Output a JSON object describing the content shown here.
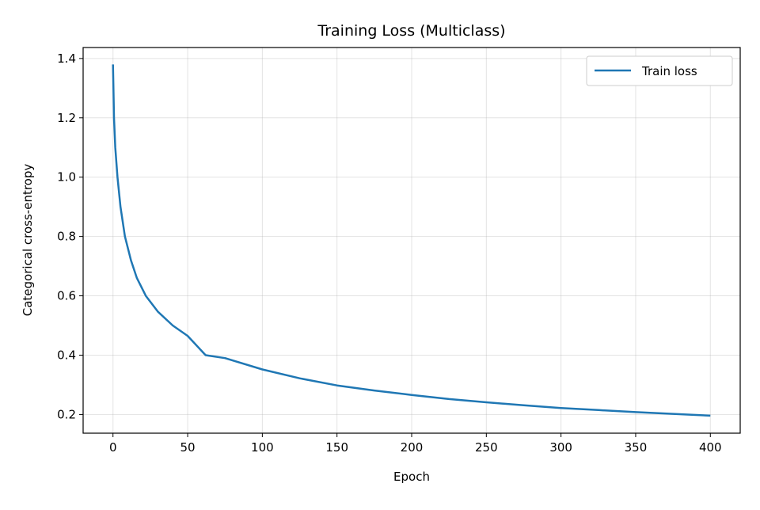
{
  "chart_data": {
    "type": "line",
    "title": "Training Loss (Multiclass)",
    "xlabel": "Epoch",
    "ylabel": "Categorical cross-entropy",
    "xlim": [
      -20,
      420
    ],
    "ylim": [
      0.137,
      1.437
    ],
    "xticks": [
      0,
      50,
      100,
      150,
      200,
      250,
      300,
      350,
      400
    ],
    "yticks": [
      0.2,
      0.4,
      0.6,
      0.8,
      1.0,
      1.2,
      1.4
    ],
    "ytick_labels": [
      "0.2",
      "0.4",
      "0.6",
      "0.8",
      "1.0",
      "1.2",
      "1.4"
    ],
    "grid": true,
    "legend": {
      "placement": "top-right",
      "entries": [
        "Train loss"
      ]
    },
    "series": [
      {
        "name": "Train loss",
        "color": "#1f77b4",
        "x": [
          0,
          0.7,
          1.5,
          3,
          5,
          8,
          12,
          16,
          22,
          30,
          40,
          50,
          62,
          75,
          100,
          125,
          150,
          175,
          200,
          225,
          250,
          275,
          300,
          325,
          350,
          375,
          400
        ],
        "y": [
          1.38,
          1.2,
          1.1,
          1.0,
          0.9,
          0.8,
          0.72,
          0.66,
          0.6,
          0.547,
          0.5,
          0.465,
          0.4,
          0.39,
          0.352,
          0.322,
          0.298,
          0.281,
          0.266,
          0.252,
          0.241,
          0.231,
          0.222,
          0.215,
          0.208,
          0.202,
          0.196
        ]
      }
    ]
  }
}
